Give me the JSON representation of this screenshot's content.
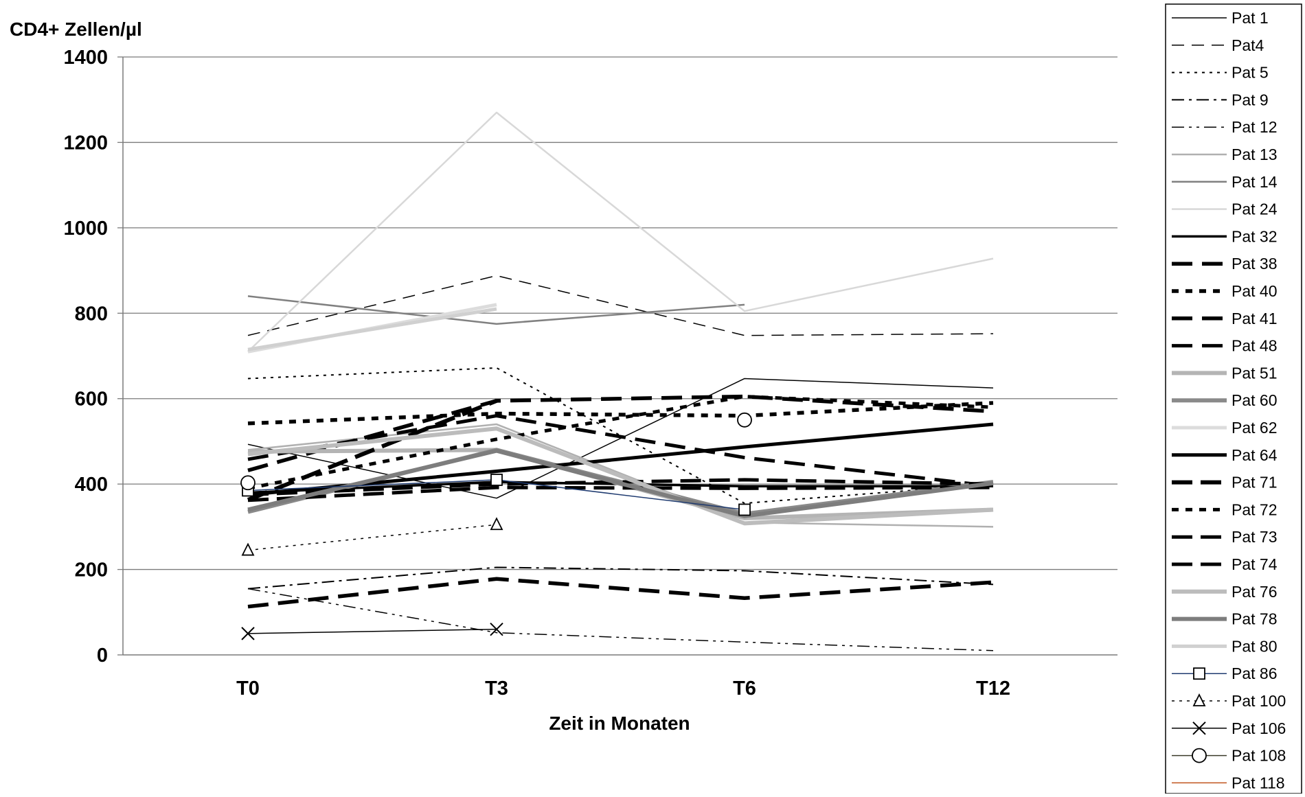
{
  "chart_data": {
    "type": "line",
    "ylabel": "CD4+ Zellen/µl",
    "xlabel": "Zeit in Monaten",
    "categories": [
      "T0",
      "T3",
      "T6",
      "T12"
    ],
    "ylim": [
      0,
      1400
    ],
    "yticks": [
      0,
      200,
      400,
      600,
      800,
      1000,
      1200,
      1400
    ],
    "grid": true,
    "legend_position": "right",
    "series": [
      {
        "name": "Pat 1",
        "values": [
          493,
          367,
          647,
          625
        ],
        "color": "#000000",
        "width": 1.5,
        "dash": "",
        "marker": ""
      },
      {
        "name": "Pat4",
        "values": [
          748,
          888,
          748,
          752
        ],
        "color": "#000000",
        "width": 1.5,
        "dash": "18 11",
        "marker": ""
      },
      {
        "name": "Pat 5",
        "values": [
          647,
          672,
          355,
          400
        ],
        "color": "#000000",
        "width": 2,
        "dash": "4 7",
        "marker": ""
      },
      {
        "name": "Pat 9",
        "values": [
          155,
          205,
          197,
          165
        ],
        "color": "#000000",
        "width": 2,
        "dash": "18 7 4 7",
        "marker": ""
      },
      {
        "name": "Pat 12",
        "values": [
          155,
          52,
          30,
          10
        ],
        "color": "#000000",
        "width": 1.5,
        "dash": "18 7 4 7 4 7",
        "marker": ""
      },
      {
        "name": "Pat 13",
        "values": [
          480,
          540,
          310,
          300
        ],
        "color": "#b0b0b0",
        "width": 2.5,
        "dash": "",
        "marker": ""
      },
      {
        "name": "Pat 14",
        "values": [
          840,
          775,
          820,
          null
        ],
        "color": "#808080",
        "width": 2.5,
        "dash": "",
        "marker": ""
      },
      {
        "name": "Pat 24",
        "values": [
          710,
          1270,
          805,
          928
        ],
        "color": "#d8d8d8",
        "width": 2.5,
        "dash": "",
        "marker": ""
      },
      {
        "name": "Pat 32",
        "values": [
          380,
          405,
          395,
          395
        ],
        "color": "#000000",
        "width": 3.5,
        "dash": "",
        "marker": ""
      },
      {
        "name": "Pat 38",
        "values": [
          113,
          178,
          133,
          170
        ],
        "color": "#000000",
        "width": 5.5,
        "dash": "30 14",
        "marker": ""
      },
      {
        "name": "Pat 40",
        "values": [
          542,
          565,
          560,
          590
        ],
        "color": "#000000",
        "width": 5.5,
        "dash": "10 10",
        "marker": ""
      },
      {
        "name": "Pat 41",
        "values": [
          432,
          595,
          605,
          570
        ],
        "color": "#000000",
        "width": 5.5,
        "dash": "30 14",
        "marker": ""
      },
      {
        "name": "Pat 48",
        "values": [
          458,
          560,
          462,
          395
        ],
        "color": "#000000",
        "width": 5,
        "dash": "30 14",
        "marker": ""
      },
      {
        "name": "Pat 51",
        "values": [
          476,
          480,
          320,
          340
        ],
        "color": "#b4b4b4",
        "width": 6,
        "dash": "",
        "marker": ""
      },
      {
        "name": "Pat 60",
        "values": [
          335,
          480,
          330,
          405
        ],
        "color": "#8a8a8a",
        "width": 6,
        "dash": "",
        "marker": ""
      },
      {
        "name": "Pat 62",
        "values": [
          710,
          820,
          null,
          null
        ],
        "color": "#dcdcdc",
        "width": 5,
        "dash": "",
        "marker": ""
      },
      {
        "name": "Pat 64",
        "values": [
          375,
          430,
          487,
          540
        ],
        "color": "#000000",
        "width": 5,
        "dash": "",
        "marker": ""
      },
      {
        "name": "Pat 71",
        "values": [
          363,
          595,
          null,
          null
        ],
        "color": "#000000",
        "width": 6,
        "dash": "30 12",
        "marker": ""
      },
      {
        "name": "Pat 72",
        "values": [
          390,
          505,
          605,
          580
        ],
        "color": "#000000",
        "width": 5,
        "dash": "10 10",
        "marker": ""
      },
      {
        "name": "Pat 73",
        "values": [
          362,
          392,
          390,
          392
        ],
        "color": "#000000",
        "width": 5,
        "dash": "30 12",
        "marker": ""
      },
      {
        "name": "Pat 74",
        "values": [
          375,
          400,
          410,
          400
        ],
        "color": "#000000",
        "width": 5,
        "dash": "30 12",
        "marker": ""
      },
      {
        "name": "Pat 76",
        "values": [
          470,
          530,
          308,
          340
        ],
        "color": "#bcbcbc",
        "width": 6,
        "dash": "",
        "marker": ""
      },
      {
        "name": "Pat 78",
        "values": [
          340,
          478,
          325,
          402
        ],
        "color": "#7d7d7d",
        "width": 6,
        "dash": "",
        "marker": ""
      },
      {
        "name": "Pat 80",
        "values": [
          715,
          810,
          null,
          null
        ],
        "color": "#d0d0d0",
        "width": 5,
        "dash": "",
        "marker": ""
      },
      {
        "name": "Pat 86",
        "values": [
          385,
          410,
          340,
          null
        ],
        "color": "#1f3b70",
        "width": 1.5,
        "dash": "",
        "marker": "square"
      },
      {
        "name": "Pat 100",
        "values": [
          245,
          305,
          null,
          null
        ],
        "color": "#000000",
        "width": 1.5,
        "dash": "4 7",
        "marker": "triangle"
      },
      {
        "name": "Pat 106",
        "values": [
          50,
          60,
          null,
          null
        ],
        "color": "#000000",
        "width": 1.5,
        "dash": "",
        "marker": "cross"
      },
      {
        "name": "Pat 108",
        "values": [
          403,
          null,
          550,
          null
        ],
        "color": "#3b3b2a",
        "width": 1.5,
        "dash": "",
        "marker": "circle"
      },
      {
        "name": "Pat 118",
        "values": [
          null,
          null,
          null,
          null
        ],
        "color": "#c0531c",
        "width": 1.5,
        "dash": "",
        "marker": ""
      }
    ]
  }
}
